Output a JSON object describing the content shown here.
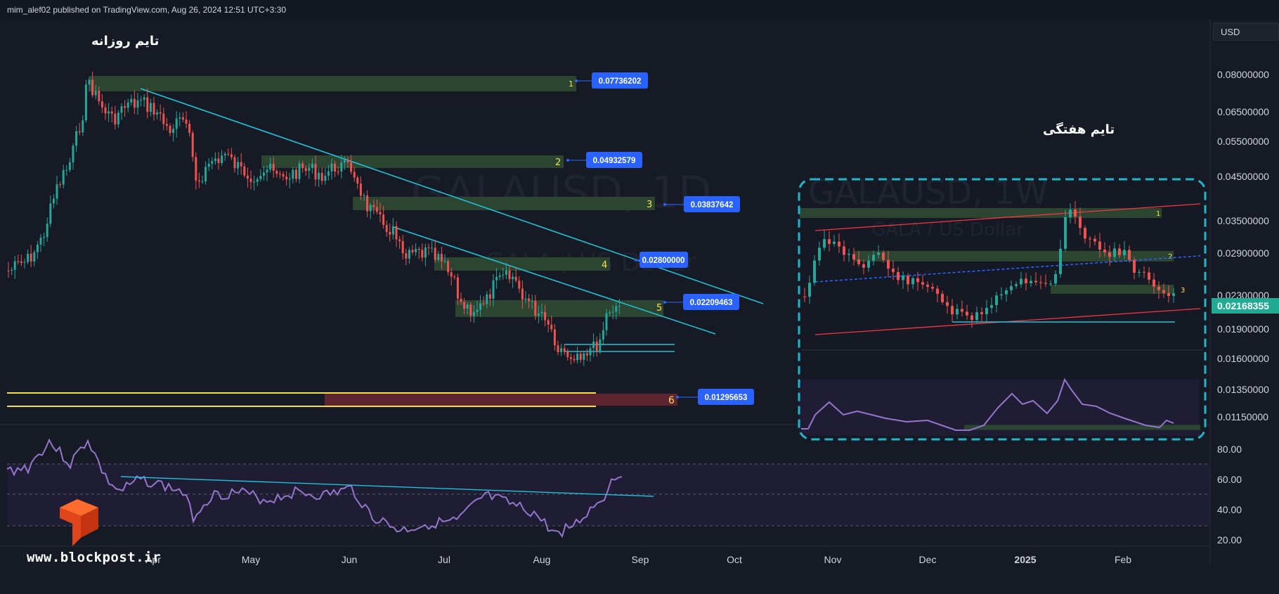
{
  "header": {
    "published": "mim_alef02 published on TradingView.com, Aug 26, 2024 12:51 UTC+3:30"
  },
  "toolbar": {
    "currency": "USD"
  },
  "annotations": {
    "daily_time_label": "تایم روزانه",
    "weekly_time_label": "تایم هفتگی"
  },
  "watermark": {
    "symbol_line": "GALAUSD, 1D",
    "pair_line": "GALA / US Dollar",
    "weekly_symbol_line": "GALAUSD, 1W",
    "weekly_pair_line": "GALA / US Dollar",
    "site": "www.blockpost.ir"
  },
  "colors": {
    "background": "#161a25",
    "candle_up": "#26a69a",
    "candle_down": "#ef5350",
    "zone_green": "#2e4a2e",
    "zone_red": "#6b2630",
    "trendline": "#22c0d8",
    "label_bg": "#2962ff",
    "rsi_line": "#9575cd",
    "current_price_bg": "#22ab94",
    "zone_number": "#f5e04b",
    "channel_red": "#f23645",
    "dashed_frame": "#1fb6cc"
  },
  "chart_data": {
    "type": "candlestick",
    "symbol": "GALAUSD",
    "interval": "1D",
    "y_scale": "log",
    "price_ticks": [
      "0.08000000",
      "0.06500000",
      "0.05500000",
      "0.04500000",
      "0.03500000",
      "0.02900000",
      "0.02300000",
      "0.01900000",
      "0.01600000",
      "0.01350000",
      "0.01150000"
    ],
    "current_price": "0.02168355",
    "x_labels": [
      "Apr",
      "May",
      "Jun",
      "Jul",
      "Aug",
      "Sep",
      "Oct",
      "Nov",
      "Dec",
      "2025",
      "Feb"
    ],
    "zones": [
      {
        "id": "1",
        "price": "0.07736202"
      },
      {
        "id": "2",
        "price": "0.04932579"
      },
      {
        "id": "3",
        "price": "0.03837642"
      },
      {
        "id": "4",
        "price": "0.02800000"
      },
      {
        "id": "5",
        "price": "0.02209463"
      },
      {
        "id": "6",
        "price": "0.01295653"
      }
    ],
    "rsi": {
      "levels": [
        "80.00",
        "60.00",
        "40.00",
        "20.00"
      ]
    },
    "weekly_inset": {
      "interval": "1W",
      "zones": [
        "1",
        "2",
        "3"
      ]
    }
  }
}
